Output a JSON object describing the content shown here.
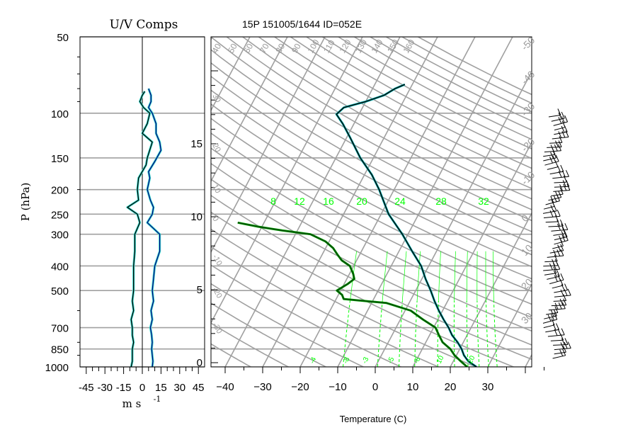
{
  "colors": {
    "grid": "#a0a0a0",
    "frame": "#000000",
    "temperature": "#000000",
    "temperature_shadow": "#00b0b0",
    "dewpoint": "#004000",
    "dewpoint_shadow": "#00a000",
    "mixing_ratio": "#00ff00",
    "wind_v": "#000080",
    "wind_u": "#000000",
    "wind_shadow": "#40e0d0"
  },
  "wind_panel": {
    "title": "U/V Comps",
    "ylabel": "P (hPa)",
    "xlabel": "m s",
    "xlabel_exponent": "-1",
    "pressure_ticks": [
      "50",
      "100",
      "150",
      "200",
      "250",
      "300",
      "400",
      "500",
      "700",
      "850",
      "1000"
    ],
    "speed_ticks": [
      "-45",
      "-30",
      "-15",
      "0",
      "15",
      "30",
      "45"
    ]
  },
  "skewt_panel": {
    "title": "15P 151005/1644 ID=052E",
    "xlabel": "Temperature (C)",
    "temperature_ticks": [
      "-40",
      "-30",
      "-20",
      "-10",
      "0",
      "10",
      "20",
      "30"
    ],
    "height_ticks": [
      "0",
      "5",
      "10",
      "15"
    ],
    "top_theta_labels": [
      "40",
      "50",
      "60",
      "70",
      "80",
      "90",
      "100",
      "110",
      "120",
      "130",
      "140",
      "150",
      "160"
    ],
    "mixing_ratio_labels": [
      "8",
      "12",
      "16",
      "20",
      "24",
      "28",
      "32"
    ],
    "right_dry_labels": [
      "-50",
      "-40",
      "-30",
      "-20",
      "-10",
      "0",
      "10",
      "20",
      "30"
    ],
    "left_dry_labels": [
      "30",
      "20",
      "10",
      "0",
      "-10",
      "-20",
      "-30"
    ],
    "bottom_moist_labels": [
      "-4",
      "-8",
      "-3",
      "-5",
      "-6",
      "10",
      "20"
    ]
  },
  "chart_data": {
    "type": "line",
    "title": "15P 151005/1644 ID=052E",
    "xlabel": "Temperature (C)",
    "ylabel": "P (hPa)",
    "xlim": [
      -43,
      42
    ],
    "ylim_pressure": [
      1000,
      50
    ],
    "yscale": "log",
    "grid": true,
    "series": [
      {
        "name": "Temperature",
        "points": [
          [
            1000,
            27.0
          ],
          [
            950,
            24.0
          ],
          [
            900,
            22.0
          ],
          [
            850,
            20.5
          ],
          [
            800,
            18.5
          ],
          [
            750,
            16.0
          ],
          [
            700,
            14.0
          ],
          [
            650,
            11.5
          ],
          [
            600,
            9.0
          ],
          [
            550,
            6.5
          ],
          [
            500,
            4.0
          ],
          [
            450,
            1.0
          ],
          [
            400,
            -2.0
          ],
          [
            350,
            -6.5
          ],
          [
            300,
            -11.5
          ],
          [
            250,
            -18.0
          ],
          [
            200,
            -24.0
          ],
          [
            175,
            -28.0
          ],
          [
            150,
            -33.5
          ],
          [
            125,
            -39.0
          ],
          [
            110,
            -43.0
          ],
          [
            101,
            -46.0
          ],
          [
            95,
            -45.0
          ],
          [
            90,
            -40.0
          ],
          [
            85,
            -36.0
          ],
          [
            80,
            -34.0
          ],
          [
            77,
            -32.0
          ]
        ]
      },
      {
        "name": "Dewpoint",
        "points": [
          [
            1000,
            24.5
          ],
          [
            950,
            22.0
          ],
          [
            900,
            19.5
          ],
          [
            850,
            17.5
          ],
          [
            800,
            14.5
          ],
          [
            750,
            12.5
          ],
          [
            700,
            10.5
          ],
          [
            650,
            6.0
          ],
          [
            600,
            1.5
          ],
          [
            560,
            -6.0
          ],
          [
            540,
            -18.0
          ],
          [
            520,
            -19.0
          ],
          [
            500,
            -21.0
          ],
          [
            470,
            -19.0
          ],
          [
            450,
            -18.0
          ],
          [
            430,
            -19.0
          ],
          [
            400,
            -21.0
          ],
          [
            380,
            -24.0
          ],
          [
            360,
            -26.0
          ],
          [
            340,
            -28.0
          ],
          [
            320,
            -31.0
          ],
          [
            300,
            -36.0
          ],
          [
            290,
            -44.0
          ],
          [
            280,
            -51.0
          ],
          [
            270,
            -57.0
          ]
        ]
      }
    ],
    "wind_components": {
      "ylabel": "P (hPa)",
      "xlabel": "m s -1",
      "xlim": [
        -50,
        50
      ],
      "series": [
        {
          "name": "U",
          "points": [
            [
              1000,
              -9.0
            ],
            [
              950,
              -8.0
            ],
            [
              900,
              -8.0
            ],
            [
              850,
              -8.0
            ],
            [
              800,
              -7.0
            ],
            [
              750,
              -8.0
            ],
            [
              700,
              -8.0
            ],
            [
              650,
              -9.0
            ],
            [
              600,
              -7.0
            ],
            [
              550,
              -8.0
            ],
            [
              500,
              -7.0
            ],
            [
              450,
              -7.0
            ],
            [
              400,
              -7.0
            ],
            [
              350,
              -6.0
            ],
            [
              300,
              -6.0
            ],
            [
              270,
              -2.0
            ],
            [
              250,
              -4.0
            ],
            [
              235,
              -12.0
            ],
            [
              220,
              -3.0
            ],
            [
              200,
              -4.0
            ],
            [
              180,
              -3.0
            ],
            [
              160,
              3.0
            ],
            [
              150,
              4.0
            ],
            [
              130,
              8.0
            ],
            [
              120,
              0.0
            ],
            [
              110,
              4.0
            ],
            [
              100,
              6.0
            ],
            [
              95,
              1.0
            ],
            [
              90,
              -2.0
            ],
            [
              85,
              0.0
            ],
            [
              82,
              2.0
            ]
          ]
        },
        {
          "name": "V",
          "points": [
            [
              1000,
              8.0
            ],
            [
              950,
              8.5
            ],
            [
              900,
              8.0
            ],
            [
              850,
              7.5
            ],
            [
              800,
              8.0
            ],
            [
              750,
              7.5
            ],
            [
              700,
              6.5
            ],
            [
              650,
              8.0
            ],
            [
              600,
              7.0
            ],
            [
              550,
              9.0
            ],
            [
              500,
              8.0
            ],
            [
              450,
              9.0
            ],
            [
              400,
              10.0
            ],
            [
              350,
              14.0
            ],
            [
              300,
              14.0
            ],
            [
              270,
              4.0
            ],
            [
              250,
              8.0
            ],
            [
              235,
              9.0
            ],
            [
              220,
              6.5
            ],
            [
              200,
              4.0
            ],
            [
              180,
              6.0
            ],
            [
              170,
              5.0
            ],
            [
              155,
              10.0
            ],
            [
              140,
              15.0
            ],
            [
              130,
              14.0
            ],
            [
              120,
              11.0
            ],
            [
              110,
              11.0
            ],
            [
              100,
              8.0
            ],
            [
              95,
              5.0
            ],
            [
              90,
              7.0
            ],
            [
              85,
              7.0
            ],
            [
              80,
              5.0
            ]
          ]
        }
      ]
    }
  }
}
